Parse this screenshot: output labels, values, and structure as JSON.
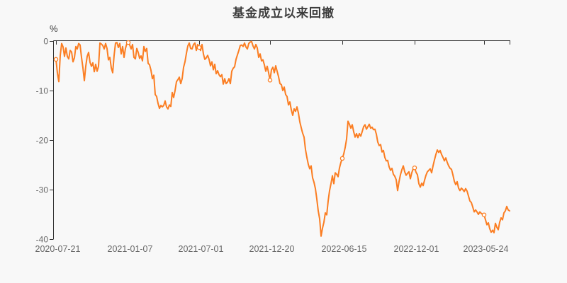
{
  "page": {
    "background": "#f8f8f8"
  },
  "chart_data": {
    "type": "line",
    "title": "基金成立以来回撤",
    "unit": "%",
    "line_color": "#fb7e23",
    "marker_fill": "#ffffff",
    "axis_color": "#333333",
    "tick_label_color": "#666666",
    "title_color": "#3c3c3c",
    "grid": false,
    "legend_position": "none",
    "ylim": [
      -40,
      0
    ],
    "y_ticks": [
      0,
      -10,
      -20,
      -30,
      -40
    ],
    "x_tick_labels": [
      "2020-07-21",
      "2021-01-07",
      "2021-07-01",
      "2021-12-20",
      "2022-06-15",
      "2022-12-01",
      "2023-05-24"
    ],
    "marker_indices": [
      1,
      52,
      102,
      152,
      203,
      254,
      303
    ],
    "values": [
      -3.5,
      -3.7,
      -6.5,
      -8.2,
      -2.9,
      -0.5,
      -1.2,
      -3.1,
      -1.4,
      -3.1,
      -3.6,
      -1.9,
      -2.2,
      -4.2,
      -3.4,
      -1.1,
      -1.6,
      -0.5,
      -0.8,
      -3.3,
      -5.4,
      -8.0,
      -5.1,
      -3.1,
      -2.3,
      -4.3,
      -5.1,
      -4.4,
      -6.2,
      -4.7,
      -6.1,
      -5.1,
      -0.4,
      -0.6,
      -0.9,
      -1.6,
      -0.5,
      -1.5,
      -3.8,
      -3.3,
      -5.4,
      -6.4,
      -2.9,
      -0.4,
      -0.3,
      -1.3,
      -0.5,
      -2.6,
      -1.1,
      -3.3,
      -1.5,
      -0.5,
      -0.3,
      -0.8,
      -1.6,
      -0.7,
      -3.3,
      -3.6,
      -1.5,
      -2.3,
      -3.5,
      -3.0,
      -4.0,
      -1.1,
      -2.1,
      -1.5,
      -4.5,
      -4.8,
      -5.9,
      -7.6,
      -6.9,
      -10.8,
      -11.2,
      -12.6,
      -13.6,
      -13.0,
      -13.3,
      -13.0,
      -12.1,
      -13.3,
      -13.7,
      -12.9,
      -13.2,
      -10.4,
      -11.4,
      -10.0,
      -8.2,
      -7.8,
      -7.3,
      -8.6,
      -7.6,
      -5.3,
      -4.2,
      -2.5,
      -1.0,
      -0.4,
      -1.5,
      -1.6,
      -0.7,
      -0.4,
      -1.9,
      -0.7,
      -1.3,
      -1.9,
      -0.7,
      -2.6,
      -3.7,
      -3.4,
      -2.9,
      -3.7,
      -5.0,
      -4.2,
      -5.8,
      -4.7,
      -6.6,
      -6.0,
      -6.8,
      -7.2,
      -6.8,
      -8.7,
      -7.6,
      -8.6,
      -8.3,
      -7.6,
      -8.6,
      -6.1,
      -5.5,
      -5.2,
      -3.7,
      -2.8,
      -1.9,
      -0.9,
      -0.8,
      -1.1,
      -0.4,
      -1.2,
      -1.6,
      -0.5,
      -0.2,
      -0.1,
      -1.0,
      -1.6,
      -0.7,
      -1.4,
      -3.3,
      -2.6,
      -4.0,
      -3.8,
      -4.8,
      -6.1,
      -5.1,
      -6.4,
      -7.9,
      -5.8,
      -5.3,
      -6.4,
      -5.0,
      -6.1,
      -7.2,
      -8.6,
      -8.8,
      -10.0,
      -9.3,
      -10.8,
      -11.2,
      -12.9,
      -12.3,
      -13.9,
      -15.0,
      -13.7,
      -14.2,
      -13.3,
      -14.5,
      -16.3,
      -17.5,
      -18.6,
      -19.4,
      -21.9,
      -23.5,
      -24.9,
      -25.8,
      -25.2,
      -27.6,
      -28.5,
      -29.8,
      -31.9,
      -34.3,
      -35.9,
      -39.4,
      -37.8,
      -36.6,
      -34.7,
      -35.1,
      -32.3,
      -30.2,
      -28.8,
      -27.2,
      -28.8,
      -26.6,
      -26.9,
      -27.4,
      -25.6,
      -24.5,
      -23.7,
      -22.8,
      -21.5,
      -19.8,
      -16.2,
      -16.8,
      -17.6,
      -16.9,
      -18.3,
      -19.4,
      -18.7,
      -19.5,
      -18.7,
      -19.2,
      -18.3,
      -17.3,
      -16.9,
      -17.8,
      -17.3,
      -16.8,
      -17.6,
      -17.4,
      -17.9,
      -17.8,
      -18.8,
      -20.4,
      -21.1,
      -20.9,
      -22.4,
      -22.1,
      -23.5,
      -24.2,
      -24.1,
      -25.4,
      -26.1,
      -25.7,
      -26.9,
      -27.3,
      -28.0,
      -30.2,
      -28.4,
      -27.0,
      -26.0,
      -25.2,
      -26.4,
      -27.1,
      -26.7,
      -26.4,
      -27.8,
      -26.6,
      -25.8,
      -25.6,
      -26.5,
      -27.0,
      -28.8,
      -29.5,
      -28.7,
      -29.2,
      -28.1,
      -27.1,
      -26.4,
      -26.1,
      -25.8,
      -26.6,
      -25.2,
      -24.0,
      -22.9,
      -22.0,
      -22.5,
      -22.1,
      -22.9,
      -23.5,
      -24.2,
      -23.6,
      -24.5,
      -25.2,
      -25.7,
      -25.9,
      -27.0,
      -28.3,
      -29.0,
      -28.4,
      -29.7,
      -30.2,
      -29.7,
      -30.0,
      -30.4,
      -29.8,
      -30.3,
      -31.3,
      -32.3,
      -32.6,
      -33.5,
      -34.5,
      -34.1,
      -34.5,
      -35.0,
      -34.5,
      -34.8,
      -35.0,
      -35.1,
      -36.1,
      -37.1,
      -36.7,
      -37.9,
      -38.6,
      -38.2,
      -38.7,
      -36.8,
      -37.6,
      -38.1,
      -36.6,
      -35.7,
      -36.1,
      -34.7,
      -34.3,
      -33.4,
      -34.1,
      -34.3
    ]
  }
}
